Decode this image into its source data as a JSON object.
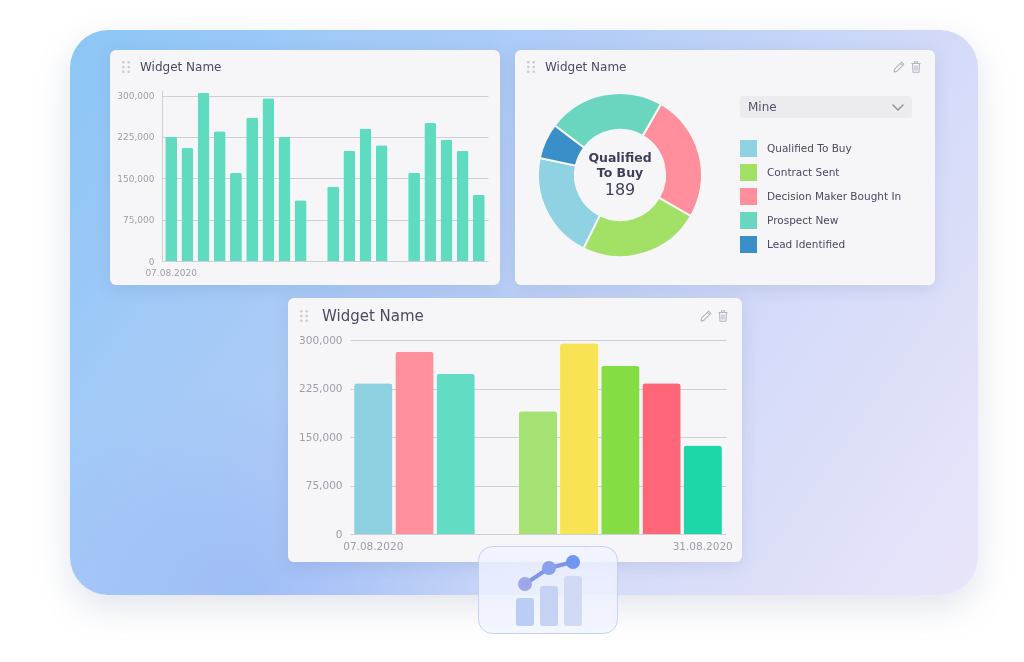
{
  "chart_data": [
    {
      "type": "bar",
      "title": "Widget Name",
      "categories": [
        "07.08.2020",
        null,
        null,
        null,
        null,
        null,
        null,
        null,
        null,
        null,
        null,
        null,
        null,
        null,
        null,
        null,
        null,
        null,
        null,
        null
      ],
      "values": [
        225000,
        205000,
        305000,
        235000,
        160000,
        260000,
        295000,
        225000,
        110000,
        null,
        135000,
        200000,
        240000,
        210000,
        null,
        160000,
        250000,
        220000,
        200000,
        120000
      ],
      "color": "#5fdcc0",
      "ylim": [
        0,
        310000
      ],
      "yticks": [
        0,
        {
          "value": 75000,
          "label": "75,000"
        },
        {
          "value": 150000,
          "label": "150,000"
        },
        {
          "value": 225000,
          "label": "225,000"
        },
        {
          "value": 300000,
          "label": "300,000"
        }
      ],
      "grid": "y"
    },
    {
      "type": "donut",
      "title": "Widget Name",
      "categories": [
        "Qualified To Buy",
        "Contract Sent",
        "Decision Maker Bought In",
        "Prospect New",
        "Lead Identified"
      ],
      "values": [
        21,
        24,
        25,
        23,
        7
      ],
      "colors": [
        "#8fd3e3",
        "#a2e066",
        "#ff8f9c",
        "#6ad6c0",
        "#3a8fc9"
      ],
      "legend": "right",
      "annotations": [
        "Mine",
        "Qualified To Buy",
        "189"
      ]
    },
    {
      "type": "bar",
      "title": "Widget Name",
      "categories": [
        "07.08.2020",
        null,
        null,
        null,
        null,
        null,
        null,
        null,
        "31.08.2020"
      ],
      "values": [
        233000,
        282000,
        248000,
        null,
        190000,
        295000,
        260000,
        233000,
        137000
      ],
      "colors": [
        "#8dd0e0",
        "#ff909c",
        "#62ddc3",
        null,
        "#a5e173",
        "#f7e354",
        "#86dc43",
        "#ff6677",
        "#1ed7a9"
      ],
      "ylim": [
        0,
        300000
      ],
      "yticks": [
        0,
        {
          "value": 75000,
          "label": "75,000"
        },
        {
          "value": 150000,
          "label": "150,000"
        },
        {
          "value": 225000,
          "label": "225,000"
        },
        {
          "value": 300000,
          "label": "300,000"
        }
      ],
      "grid": "y"
    }
  ]
}
